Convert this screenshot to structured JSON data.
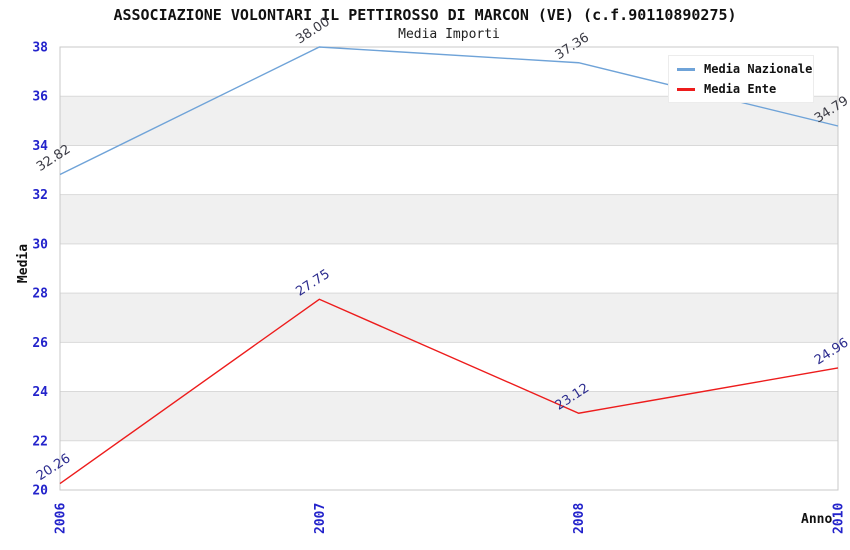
{
  "chart_data": {
    "type": "line",
    "title": "ASSOCIAZIONE VOLONTARI IL PETTIROSSO DI MARCON (VE) (c.f.90110890275)",
    "subtitle": "Media Importi",
    "xlabel": "Anno",
    "ylabel": "Media",
    "categories": [
      "2006",
      "2007",
      "2008",
      "2010"
    ],
    "series": [
      {
        "name": "Media Nazionale",
        "color": "#6fa3d8",
        "label_color": "#3a3a44",
        "values": [
          32.82,
          38.0,
          37.36,
          34.79
        ],
        "labels": [
          "32.82",
          "38.00",
          "37.36",
          "34.79"
        ]
      },
      {
        "name": "Media Ente",
        "color": "#ed1c1c",
        "label_color": "#2c2c8e",
        "values": [
          20.26,
          27.75,
          23.12,
          24.96
        ],
        "labels": [
          "20.26",
          "27.75",
          "23.12",
          "24.96"
        ]
      }
    ],
    "ylim": [
      20,
      38
    ],
    "ytick_step": 2,
    "yticks": [
      20,
      22,
      24,
      26,
      28,
      30,
      32,
      34,
      36,
      38
    ],
    "grid": true,
    "band_colors": [
      "#ffffff",
      "#f0f0f0"
    ],
    "gridline_color": "#d9d9d9",
    "plot_border_color": "#c9c9c9",
    "axis_text_color": "#2323cb",
    "legend_position": "top-right"
  }
}
